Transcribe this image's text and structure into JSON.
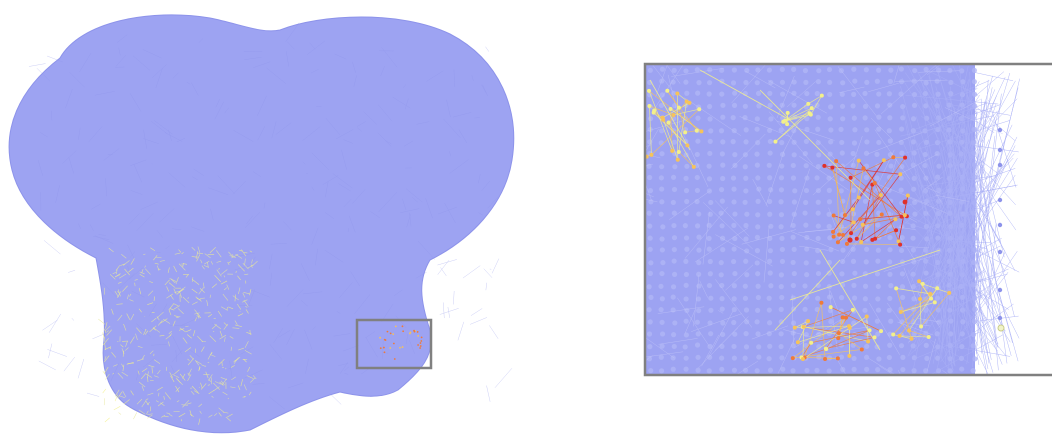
{
  "figure": {
    "panels": [
      {
        "id": "overview",
        "description_visible_text": ""
      },
      {
        "id": "zoom-inset",
        "description_visible_text": ""
      }
    ],
    "colors": {
      "background": "#ffffff",
      "mass": "#9da3f2",
      "mass_dark": "#8d93ea",
      "edge": "#aab0f6",
      "low": "#f3f08a",
      "mid": "#f6c35a",
      "high": "#ef7a3a",
      "peak": "#e0302a",
      "frame": "#808080"
    }
  }
}
